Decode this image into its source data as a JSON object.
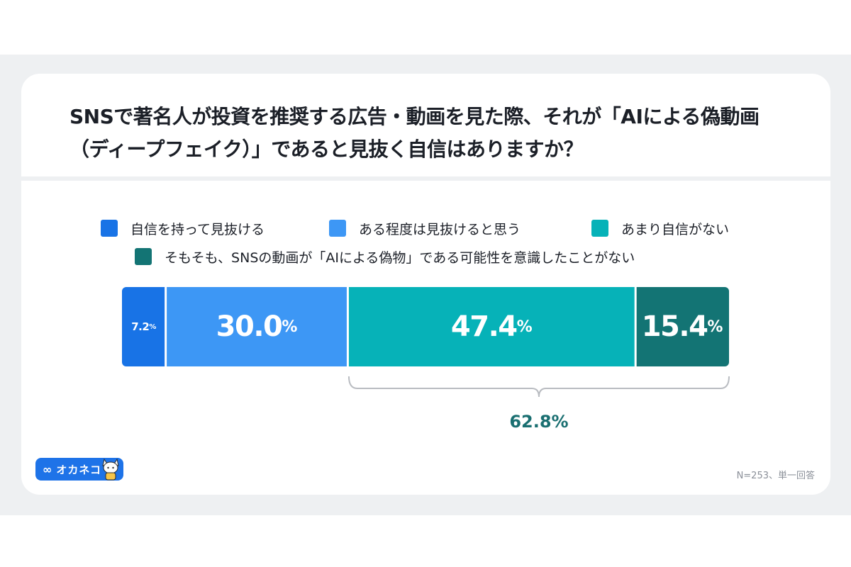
{
  "title": "SNSで著名人が投資を推奨する広告・動画を見た際、それが「AIによる偽動画（ディープフェイク）」であると見抜く自信はありますか？",
  "legend": [
    {
      "label": "自信を持って見抜ける",
      "color": "#1873e6"
    },
    {
      "label": "ある程度は見抜けると思う",
      "color": "#3d97f5"
    },
    {
      "label": "あまり自信がない",
      "color": "#06b2b8"
    },
    {
      "label": "そもそも、SNSの動画が「AIによる偽物」である可能性を意識したことがない",
      "color": "#137474"
    }
  ],
  "chart_data": {
    "type": "bar",
    "orientation": "horizontal-stacked-100",
    "series": [
      {
        "name": "自信を持って見抜ける",
        "values": [
          7.2
        ],
        "label": "7.2",
        "color": "#1873e6"
      },
      {
        "name": "ある程度は見抜けると思う",
        "values": [
          30.0
        ],
        "label": "30.0",
        "color": "#3d97f5"
      },
      {
        "name": "あまり自信がない",
        "values": [
          47.4
        ],
        "label": "47.4",
        "color": "#06b2b8"
      },
      {
        "name": "そもそも、SNSの動画が「AIによる偽物」である可能性を意識したことがない",
        "values": [
          15.4
        ],
        "label": "15.4",
        "color": "#137474"
      }
    ],
    "unit": "%",
    "bracket": {
      "label": "62.8%",
      "spans": [
        "あまり自信がない",
        "そもそも、SNSの動画が「AIによる偽物」である可能性を意識したことがない"
      ],
      "color": "#1a6f71"
    }
  },
  "logo": {
    "text": "オカネコ",
    "mark": "∞",
    "color": "#1e73e8"
  },
  "footnote": "N=253、単一回答"
}
